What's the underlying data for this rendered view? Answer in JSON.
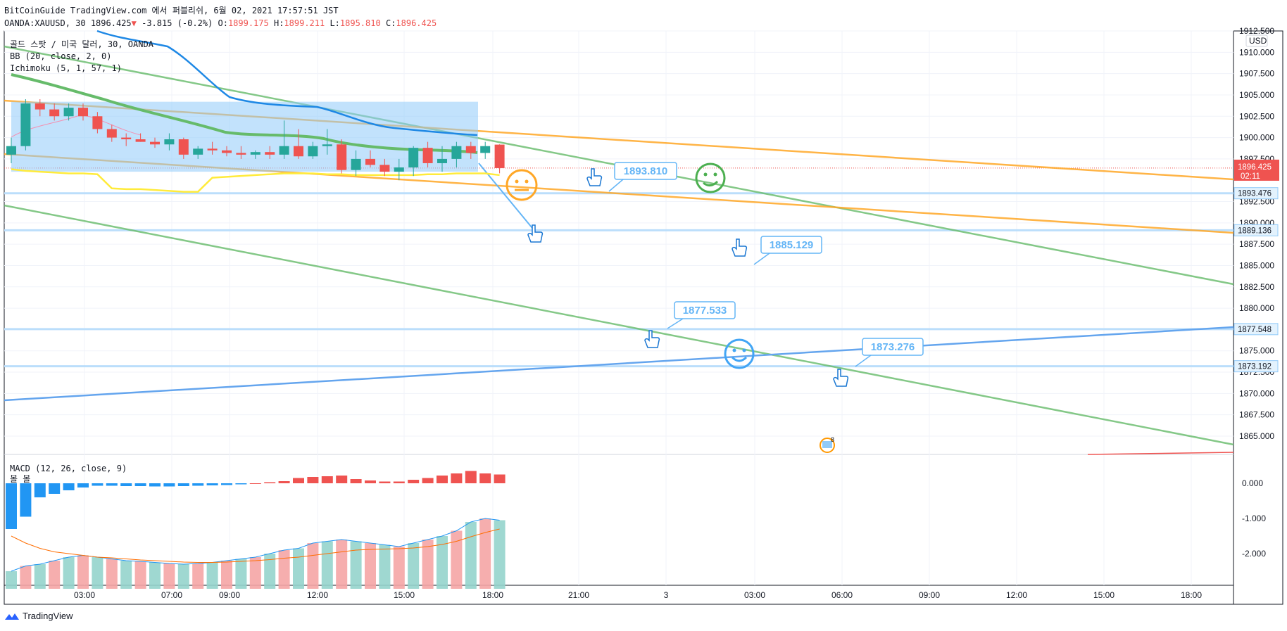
{
  "header": {
    "line1": "BitCoinGuide TradingView.com 에서 퍼블리쉬, 6월 02, 2021 17:57:51 JST",
    "symbol": "OANDA:XAUUSD, 30",
    "last": "1896.425",
    "arrow": "▼",
    "change": "-3.815 (-0.2%)",
    "o_label": "O:",
    "o": "1899.175",
    "h_label": "H:",
    "h": "1899.211",
    "l_label": "L:",
    "l": "1895.810",
    "c_label": "C:",
    "c": "1896.425"
  },
  "legend": {
    "title": "골드 스팟 / 미국 달러, 30, OANDA",
    "bb": "BB (20, close, 2, 0)",
    "ichimoku": "Ichimoku (5, 1, 57, 1)",
    "macd": "MACD (12, 26, close, 9)",
    "macd_sub": "볼 볼"
  },
  "price_axis": {
    "currency": "USD",
    "ticks": [
      "1912.500",
      "1910.000",
      "1907.500",
      "1905.000",
      "1902.500",
      "1900.000",
      "1897.500",
      "1892.500",
      "1890.000",
      "1887.500",
      "1885.000",
      "1882.500",
      "1880.000",
      "1877.500",
      "1875.000",
      "1872.500",
      "1870.000",
      "1867.500",
      "1865.000"
    ],
    "tick_values": [
      1912.5,
      1910,
      1907.5,
      1905,
      1902.5,
      1900,
      1897.5,
      1892.5,
      1890,
      1887.5,
      1885,
      1882.5,
      1880,
      1877.5,
      1875,
      1872.5,
      1870,
      1867.5,
      1865
    ],
    "current_price": "1896.425",
    "countdown": "02:11",
    "level_tags": [
      "1893.476",
      "1889.136",
      "1877.548",
      "1873.192"
    ]
  },
  "macd_axis": {
    "ticks": [
      "0.000",
      "-1.000",
      "-2.000"
    ]
  },
  "time_axis": {
    "ticks": [
      "03:00",
      "07:00",
      "09:00",
      "12:00",
      "15:00",
      "18:00",
      "21:00",
      "3",
      "03:00",
      "06:00",
      "09:00",
      "12:00",
      "15:00",
      "18:00"
    ]
  },
  "annotations": {
    "callouts": [
      "1893.810",
      "1885.129",
      "1877.533",
      "1873.276"
    ],
    "event_badge_count": "8"
  },
  "colors": {
    "up": "#26a69a",
    "down": "#ef5350",
    "blue_line": "#1e88e5",
    "green_line": "#66bb6a",
    "orange_line": "#ffa726",
    "level": "#bbdefb",
    "callout": "#64b5f6",
    "bb_basis": "#ffeb3b"
  },
  "chart_data": {
    "type": "candlestick",
    "symbol": "OANDA:XAUUSD",
    "interval": "30",
    "candles": [
      [
        1898.0,
        1900.0,
        1897.0,
        1899.0
      ],
      [
        1899.0,
        1904.5,
        1898.5,
        1904.0
      ],
      [
        1904.0,
        1904.5,
        1902.5,
        1903.3
      ],
      [
        1903.3,
        1904.0,
        1902.0,
        1902.5
      ],
      [
        1902.5,
        1904.0,
        1902.0,
        1903.5
      ],
      [
        1903.5,
        1904.0,
        1902.0,
        1902.5
      ],
      [
        1902.5,
        1903.0,
        1900.5,
        1901.0
      ],
      [
        1901.0,
        1901.5,
        1899.5,
        1900.0
      ],
      [
        1900.0,
        1900.5,
        1899.0,
        1899.8
      ],
      [
        1899.8,
        1900.5,
        1899.5,
        1899.5
      ],
      [
        1899.5,
        1900.0,
        1898.8,
        1899.2
      ],
      [
        1899.2,
        1900.5,
        1898.5,
        1899.8
      ],
      [
        1899.8,
        1900.0,
        1897.5,
        1898.0
      ],
      [
        1898.0,
        1899.0,
        1897.5,
        1898.7
      ],
      [
        1898.7,
        1899.5,
        1898.0,
        1898.5
      ],
      [
        1898.5,
        1899.0,
        1897.8,
        1898.2
      ],
      [
        1898.2,
        1899.0,
        1897.5,
        1898.0
      ],
      [
        1898.0,
        1898.5,
        1897.5,
        1898.3
      ],
      [
        1898.3,
        1899.0,
        1897.5,
        1898.0
      ],
      [
        1898.0,
        1902.0,
        1897.5,
        1899.0
      ],
      [
        1899.0,
        1901.0,
        1897.5,
        1897.8
      ],
      [
        1897.8,
        1899.5,
        1897.5,
        1899.0
      ],
      [
        1899.0,
        1901.0,
        1898.0,
        1899.2
      ],
      [
        1899.2,
        1899.8,
        1895.8,
        1896.2
      ],
      [
        1896.2,
        1898.5,
        1895.5,
        1897.5
      ],
      [
        1897.5,
        1898.5,
        1896.5,
        1896.8
      ],
      [
        1896.8,
        1897.5,
        1895.5,
        1896.0
      ],
      [
        1896.0,
        1897.5,
        1895.0,
        1896.5
      ],
      [
        1896.5,
        1899.0,
        1895.5,
        1898.8
      ],
      [
        1898.8,
        1899.5,
        1896.5,
        1897.0
      ],
      [
        1897.0,
        1899.0,
        1896.0,
        1897.5
      ],
      [
        1897.5,
        1899.5,
        1896.5,
        1899.0
      ],
      [
        1899.0,
        1899.5,
        1897.5,
        1898.2
      ],
      [
        1898.2,
        1899.5,
        1897.5,
        1899.0
      ],
      [
        1899.175,
        1899.211,
        1895.81,
        1896.425
      ]
    ],
    "bb_basis": [
      1896.3,
      1896.1,
      1896.0,
      1895.9,
      1895.8,
      1895.8,
      1895.7,
      1895.7,
      1895.6,
      1895.6,
      1895.5,
      1895.4,
      1895.3,
      1895.3,
      1895.3,
      1895.4,
      1895.5,
      1895.6,
      1895.7,
      1895.8,
      1895.8,
      1895.8,
      1895.7,
      1895.7,
      1895.6,
      1895.6,
      1895.6,
      1895.6,
      1895.6,
      1895.7,
      1895.7,
      1895.8,
      1895.8,
      1895.8,
      1895.6
    ],
    "kumo_top": 1904.2,
    "kumo_bottom": 1896.0,
    "levels": [
      1893.476,
      1889.136,
      1877.548,
      1873.192
    ],
    "macd_hist": [
      -1.3,
      -0.95,
      -0.4,
      -0.3,
      -0.2,
      -0.12,
      -0.07,
      -0.07,
      -0.08,
      -0.08,
      -0.09,
      -0.09,
      -0.08,
      -0.07,
      -0.06,
      -0.05,
      -0.03,
      0.0,
      0.03,
      0.06,
      0.15,
      0.18,
      0.2,
      0.22,
      0.12,
      0.08,
      0.05,
      0.05,
      0.1,
      0.15,
      0.22,
      0.28,
      0.35,
      0.28,
      0.25
    ],
    "macd_line": [
      -2.5,
      -2.35,
      -2.3,
      -2.2,
      -2.1,
      -2.05,
      -2.1,
      -2.15,
      -2.2,
      -2.22,
      -2.25,
      -2.28,
      -2.3,
      -2.28,
      -2.25,
      -2.2,
      -2.15,
      -2.1,
      -2.0,
      -1.9,
      -1.85,
      -1.7,
      -1.65,
      -1.6,
      -1.65,
      -1.7,
      -1.75,
      -1.8,
      -1.7,
      -1.6,
      -1.5,
      -1.35,
      -1.1,
      -1.0,
      -1.05
    ],
    "signal_line": [
      -1.5,
      -1.7,
      -1.85,
      -1.95,
      -2.0,
      -2.05,
      -2.1,
      -2.12,
      -2.15,
      -2.18,
      -2.2,
      -2.22,
      -2.24,
      -2.25,
      -2.25,
      -2.24,
      -2.22,
      -2.2,
      -2.17,
      -2.13,
      -2.1,
      -2.05,
      -2.0,
      -1.95,
      -1.9,
      -1.88,
      -1.87,
      -1.86,
      -1.84,
      -1.8,
      -1.74,
      -1.65,
      -1.52,
      -1.4,
      -1.3
    ]
  }
}
